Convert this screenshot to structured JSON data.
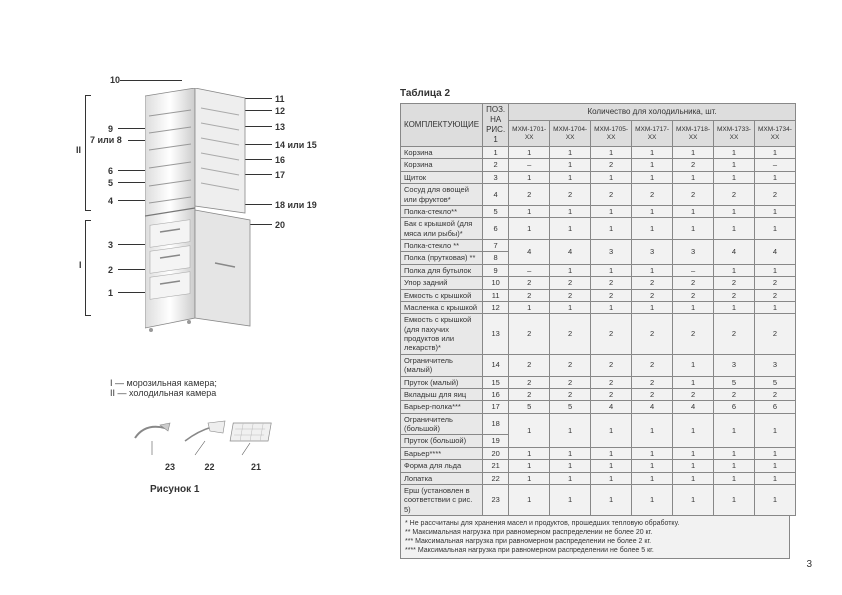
{
  "figure_caption": "Рисунок 1",
  "table_caption": "Таблица 2",
  "page_number": "3",
  "legend": {
    "line1": "I — морозильная камера;",
    "line2": "II — холодильная камера"
  },
  "callouts": {
    "c10": "10",
    "c9": "9",
    "c7_8": "7 или 8",
    "c6": "6",
    "c5": "5",
    "c4": "4",
    "c3": "3",
    "c2": "2",
    "c1": "1",
    "cII": "II",
    "cI": "I",
    "c11": "11",
    "c12": "12",
    "c13": "13",
    "c14_15": "14 или 15",
    "c16": "16",
    "c17": "17",
    "c18_19": "18 или 19",
    "c20": "20",
    "a23": "23",
    "a22": "22",
    "a21": "21"
  },
  "table": {
    "header": {
      "components": "КОМПЛЕКТУЮЩИЕ",
      "pos": "ПОЗ. НА РИС. 1",
      "qty": "Количество для холодильника, шт.",
      "models": [
        "МХМ-1701-XX",
        "МХМ-1704-XX",
        "МХМ-1705-XX",
        "МХМ-1717-XX",
        "МХМ-1718-XX",
        "МХМ-1733-XX",
        "МХМ-1734-XX"
      ]
    },
    "rows": [
      {
        "name": "Корзина",
        "pos": "1",
        "v": [
          "1",
          "1",
          "1",
          "1",
          "1",
          "1",
          "1"
        ]
      },
      {
        "name": "Корзина",
        "pos": "2",
        "v": [
          "–",
          "1",
          "2",
          "1",
          "2",
          "1",
          "–"
        ]
      },
      {
        "name": "Щиток",
        "pos": "3",
        "v": [
          "1",
          "1",
          "1",
          "1",
          "1",
          "1",
          "1"
        ]
      },
      {
        "name": "Сосуд для овощей или фруктов*",
        "pos": "4",
        "v": [
          "2",
          "2",
          "2",
          "2",
          "2",
          "2",
          "2"
        ]
      },
      {
        "name": "Полка-стекло**",
        "pos": "5",
        "v": [
          "1",
          "1",
          "1",
          "1",
          "1",
          "1",
          "1"
        ]
      },
      {
        "name": "Бак с крышкой (для мяса или рыбы)*",
        "pos": "6",
        "v": [
          "1",
          "1",
          "1",
          "1",
          "1",
          "1",
          "1"
        ]
      },
      {
        "name": "Полка-стекло **",
        "pos": "7",
        "v_rowspan": [
          "4",
          "4",
          "3",
          "3",
          "3",
          "4",
          "4"
        ]
      },
      {
        "name": "Полка (прутковая) **",
        "pos": "8"
      },
      {
        "name": "Полка для бутылок",
        "pos": "9",
        "v": [
          "–",
          "1",
          "1",
          "1",
          "–",
          "1",
          "1"
        ]
      },
      {
        "name": "Упор задний",
        "pos": "10",
        "v": [
          "2",
          "2",
          "2",
          "2",
          "2",
          "2",
          "2"
        ]
      },
      {
        "name": "Емкость с крышкой",
        "pos": "11",
        "v": [
          "2",
          "2",
          "2",
          "2",
          "2",
          "2",
          "2"
        ]
      },
      {
        "name": "Масленка с крышкой",
        "pos": "12",
        "v": [
          "1",
          "1",
          "1",
          "1",
          "1",
          "1",
          "1"
        ]
      },
      {
        "name": "Емкость с крышкой\n(для пахучих продуктов или лекарств)*",
        "pos": "13",
        "v": [
          "2",
          "2",
          "2",
          "2",
          "2",
          "2",
          "2"
        ]
      },
      {
        "name": "Ограничитель (малый)",
        "pos": "14",
        "v": [
          "2",
          "2",
          "2",
          "2",
          "1",
          "3",
          "3"
        ]
      },
      {
        "name": "Пруток (малый)",
        "pos": "15",
        "v": [
          "2",
          "2",
          "2",
          "2",
          "1",
          "5",
          "5"
        ]
      },
      {
        "name": "Вкладыш для яиц",
        "pos": "16",
        "v": [
          "2",
          "2",
          "2",
          "2",
          "2",
          "2",
          "2"
        ]
      },
      {
        "name": "Барьер-полка***",
        "pos": "17",
        "v": [
          "5",
          "5",
          "4",
          "4",
          "4",
          "6",
          "6"
        ]
      },
      {
        "name": "Ограничитель (большой)",
        "pos": "18",
        "v_rowspan": [
          "1",
          "1",
          "1",
          "1",
          "1",
          "1",
          "1"
        ]
      },
      {
        "name": "Пруток (большой)",
        "pos": "19"
      },
      {
        "name": "Барьер****",
        "pos": "20",
        "v": [
          "1",
          "1",
          "1",
          "1",
          "1",
          "1",
          "1"
        ]
      },
      {
        "name": "Форма для льда",
        "pos": "21",
        "v": [
          "1",
          "1",
          "1",
          "1",
          "1",
          "1",
          "1"
        ]
      },
      {
        "name": "Лопатка",
        "pos": "22",
        "v": [
          "1",
          "1",
          "1",
          "1",
          "1",
          "1",
          "1"
        ]
      },
      {
        "name": "Ерш (установлен в соответствии с рис. 5)",
        "pos": "23",
        "v": [
          "1",
          "1",
          "1",
          "1",
          "1",
          "1",
          "1"
        ]
      }
    ],
    "footnotes": [
      "* Не рассчитаны для хранения масел и продуктов, прошедших тепловую обработку.",
      "** Максимальная нагрузка при равномерном распределении не более 20 кг.",
      "*** Максимальная нагрузка при равномерном распределении не более 2 кг.",
      "**** Максимальная нагрузка при равномерном распределении не более 5 кг."
    ]
  }
}
